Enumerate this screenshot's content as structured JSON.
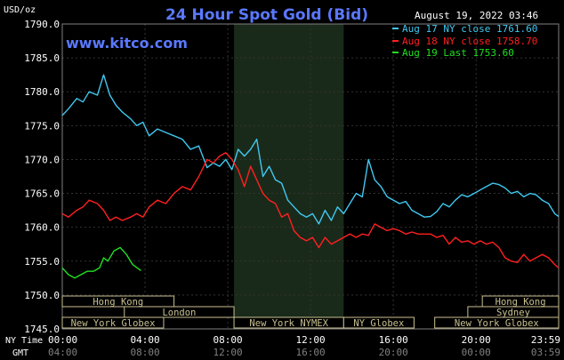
{
  "chart_data": {
    "type": "line",
    "title": "24 Hour Spot Gold (Bid)",
    "watermark": "www.kitco.com",
    "y_unit": "USD/oz",
    "timestamp": "August 19, 2022 03:46",
    "ylim": [
      1745.0,
      1790.0
    ],
    "y_ticks": [
      "1790.0",
      "1785.0",
      "1780.0",
      "1775.0",
      "1770.0",
      "1765.0",
      "1760.0",
      "1755.0",
      "1750.0",
      "1745.0"
    ],
    "x_axis_ny_label": "NY Time",
    "x_axis_gmt_label": "GMT",
    "x_ticks_ny": [
      "00:00",
      "04:00",
      "08:00",
      "12:00",
      "16:00",
      "20:00",
      "23:59"
    ],
    "x_ticks_gmt": [
      "04:00",
      "08:00",
      "12:00",
      "16:00",
      "20:00",
      "00:00",
      "03:59"
    ],
    "shaded_region_hours": [
      8.3,
      13.6
    ],
    "legend": [
      {
        "label": "Aug 17 NY close 1761.60",
        "color": "#40c8f0"
      },
      {
        "label": "Aug 18 NY close 1758.70",
        "color": "#ff2020"
      },
      {
        "label": "Aug 19 Last 1753.60",
        "color": "#20e020"
      }
    ],
    "sessions": [
      {
        "label": "Hong Kong",
        "start": 0.0,
        "end": 5.4
      },
      {
        "label": "London",
        "start": 3.0,
        "end": 8.3
      },
      {
        "label": "New York Globex",
        "start": 0.0,
        "end": 4.9
      },
      {
        "label": "New York NYMEX",
        "start": 8.3,
        "end": 13.6
      },
      {
        "label": "NY Globex",
        "start": 13.6,
        "end": 17.0
      },
      {
        "label": "Hong Kong",
        "start": 20.3,
        "end": 23.99
      },
      {
        "label": "Sydney",
        "start": 19.6,
        "end": 23.99
      },
      {
        "label": "New York Globex",
        "start": 18.0,
        "end": 23.99
      }
    ],
    "series": [
      {
        "name": "Aug 17",
        "color": "#40c8f0",
        "x": [
          0,
          0.3,
          0.7,
          1.0,
          1.3,
          1.7,
          2.0,
          2.3,
          2.6,
          2.9,
          3.3,
          3.6,
          3.9,
          4.2,
          4.6,
          5.0,
          5.4,
          5.8,
          6.2,
          6.6,
          7.0,
          7.3,
          7.6,
          7.9,
          8.2,
          8.5,
          8.8,
          9.1,
          9.4,
          9.7,
          10.0,
          10.3,
          10.6,
          10.9,
          11.2,
          11.5,
          11.8,
          12.1,
          12.4,
          12.7,
          13.0,
          13.3,
          13.6,
          13.9,
          14.2,
          14.5,
          14.8,
          15.1,
          15.4,
          15.7,
          16.0,
          16.3,
          16.6,
          16.9,
          17.2,
          17.5,
          17.8,
          18.1,
          18.4,
          18.7,
          19.0,
          19.3,
          19.6,
          19.9,
          20.2,
          20.5,
          20.8,
          21.1,
          21.4,
          21.7,
          22.0,
          22.3,
          22.6,
          22.9,
          23.2,
          23.5,
          23.8,
          23.99
        ],
        "values": [
          1776.5,
          1777.5,
          1779.0,
          1778.5,
          1780.0,
          1779.5,
          1782.5,
          1779.5,
          1778.0,
          1777.0,
          1776.0,
          1775.0,
          1775.5,
          1773.5,
          1774.5,
          1774.0,
          1773.5,
          1773.0,
          1771.5,
          1772.0,
          1768.8,
          1769.5,
          1769.0,
          1770.0,
          1768.5,
          1771.5,
          1770.5,
          1771.5,
          1773.0,
          1767.5,
          1769.0,
          1767.0,
          1766.5,
          1764.0,
          1763.0,
          1762.0,
          1761.5,
          1762.0,
          1760.5,
          1762.5,
          1761.0,
          1763.0,
          1762.0,
          1763.5,
          1765.0,
          1764.5,
          1770.0,
          1767.0,
          1766.0,
          1764.5,
          1764.0,
          1763.5,
          1763.8,
          1762.5,
          1762.0,
          1761.5,
          1761.6,
          1762.3,
          1763.5,
          1763.0,
          1764.0,
          1764.8,
          1764.5,
          1765.0,
          1765.5,
          1766.0,
          1766.5,
          1766.3,
          1765.8,
          1765.0,
          1765.3,
          1764.5,
          1765.0,
          1764.8,
          1764.0,
          1763.5,
          1762.0,
          1761.6
        ]
      },
      {
        "name": "Aug 18",
        "color": "#ff2020",
        "x": [
          0,
          0.3,
          0.7,
          1.0,
          1.3,
          1.7,
          2.0,
          2.3,
          2.6,
          2.9,
          3.3,
          3.6,
          3.9,
          4.2,
          4.6,
          5.0,
          5.4,
          5.8,
          6.2,
          6.6,
          7.0,
          7.3,
          7.6,
          7.9,
          8.2,
          8.5,
          8.8,
          9.1,
          9.4,
          9.7,
          10.0,
          10.3,
          10.6,
          10.9,
          11.2,
          11.5,
          11.8,
          12.1,
          12.4,
          12.7,
          13.0,
          13.3,
          13.6,
          13.9,
          14.2,
          14.5,
          14.8,
          15.1,
          15.4,
          15.7,
          16.0,
          16.3,
          16.6,
          16.9,
          17.2,
          17.5,
          17.8,
          18.1,
          18.4,
          18.7,
          19.0,
          19.3,
          19.6,
          19.9,
          20.2,
          20.5,
          20.8,
          21.1,
          21.4,
          21.7,
          22.0,
          22.3,
          22.6,
          22.9,
          23.2,
          23.5,
          23.8,
          23.99
        ],
        "values": [
          1762.0,
          1761.5,
          1762.5,
          1763.0,
          1764.0,
          1763.5,
          1762.5,
          1761.0,
          1761.5,
          1761.0,
          1761.5,
          1762.0,
          1761.5,
          1763.0,
          1764.0,
          1763.5,
          1765.0,
          1766.0,
          1765.5,
          1767.5,
          1770.0,
          1769.5,
          1770.5,
          1771.0,
          1770.0,
          1768.5,
          1766.0,
          1769.0,
          1767.0,
          1765.0,
          1764.0,
          1763.5,
          1761.5,
          1762.0,
          1759.5,
          1758.5,
          1758.0,
          1758.5,
          1757.0,
          1758.5,
          1757.5,
          1758.0,
          1758.5,
          1759.0,
          1758.5,
          1759.0,
          1758.8,
          1760.5,
          1760.0,
          1759.5,
          1759.8,
          1759.5,
          1759.0,
          1759.3,
          1759.0,
          1759.0,
          1759.0,
          1758.5,
          1758.8,
          1757.5,
          1758.5,
          1757.8,
          1758.0,
          1757.5,
          1758.0,
          1757.5,
          1757.8,
          1757.0,
          1755.5,
          1755.0,
          1754.8,
          1756.0,
          1755.0,
          1755.5,
          1756.0,
          1755.5,
          1754.5,
          1754.0
        ]
      },
      {
        "name": "Aug 19",
        "color": "#20e020",
        "x": [
          0,
          0.3,
          0.6,
          0.9,
          1.2,
          1.5,
          1.8,
          2.0,
          2.2,
          2.5,
          2.8,
          3.1,
          3.4,
          3.8
        ],
        "values": [
          1754.0,
          1753.0,
          1752.5,
          1753.0,
          1753.5,
          1753.5,
          1754.0,
          1755.5,
          1755.0,
          1756.5,
          1757.0,
          1756.0,
          1754.5,
          1753.6
        ]
      }
    ]
  }
}
